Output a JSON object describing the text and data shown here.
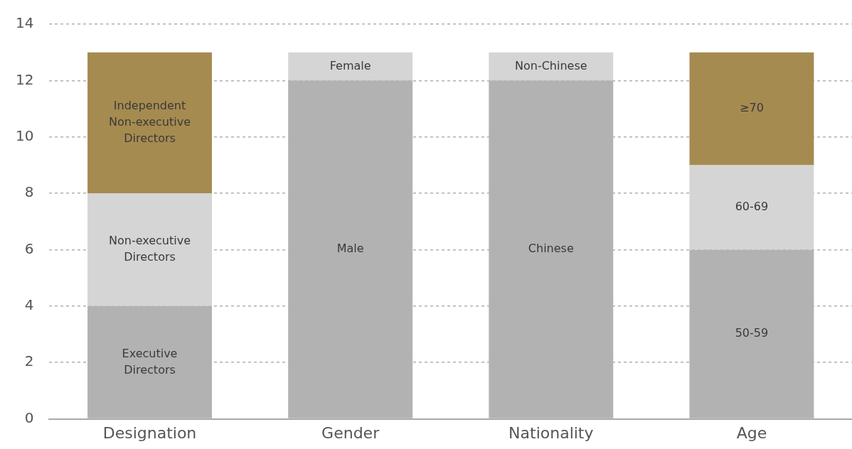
{
  "chart_data": {
    "type": "bar",
    "stacked": true,
    "categories": [
      "Designation",
      "Gender",
      "Nationality",
      "Age"
    ],
    "series": [
      {
        "values": [
          4,
          12,
          12,
          6
        ],
        "colors": [
          "#b2b2b2",
          "#b2b2b2",
          "#b2b2b2",
          "#b2b2b2"
        ],
        "value_labels": [
          "Executive Directors",
          "Male",
          "Chinese",
          "50-59"
        ]
      },
      {
        "values": [
          4,
          1,
          1,
          3
        ],
        "colors": [
          "#d5d5d5",
          "#d5d5d5",
          "#d5d5d5",
          "#d5d5d5"
        ],
        "value_labels": [
          "Non-executive Directors",
          "Female",
          "Non-Chinese",
          "60-69"
        ]
      },
      {
        "values": [
          5,
          null,
          null,
          4
        ],
        "colors": [
          "#a68b50",
          null,
          null,
          "#a68b50"
        ],
        "value_labels": [
          "Independent Non-executive Directors",
          null,
          null,
          "≥70"
        ]
      }
    ],
    "ylim": [
      0,
      14
    ],
    "yticks": [
      0,
      2,
      4,
      6,
      8,
      10,
      12,
      14
    ],
    "grid": "y",
    "legend": false
  }
}
